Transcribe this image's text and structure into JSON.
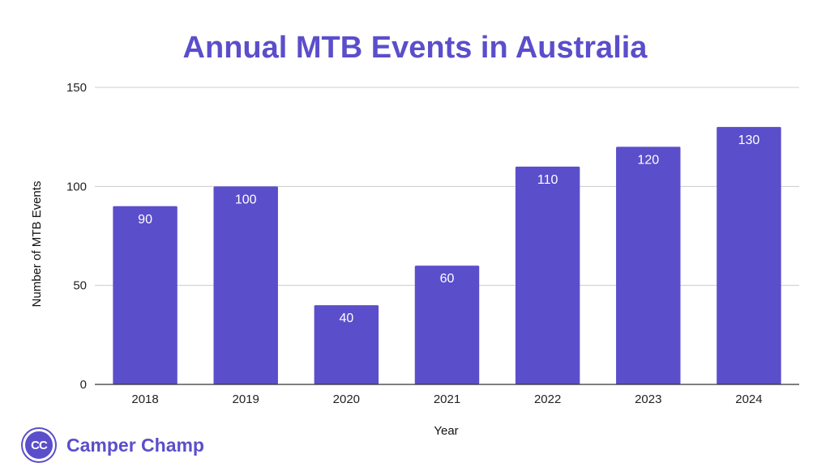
{
  "colors": {
    "accent": "#5b4ecb",
    "grid": "#cccccc",
    "axis": "#333333"
  },
  "chart_data": {
    "type": "bar",
    "title": "Annual MTB Events in Australia",
    "xlabel": "Year",
    "ylabel": "Number of MTB Events",
    "categories": [
      "2018",
      "2019",
      "2020",
      "2021",
      "2022",
      "2023",
      "2024"
    ],
    "values": [
      90,
      100,
      40,
      60,
      110,
      120,
      130
    ],
    "ylim": [
      0,
      150
    ],
    "yticks": [
      0,
      50,
      100,
      150
    ],
    "grid": true,
    "data_labels": true
  },
  "logo": {
    "badge": "CC",
    "text": "Camper Champ"
  }
}
